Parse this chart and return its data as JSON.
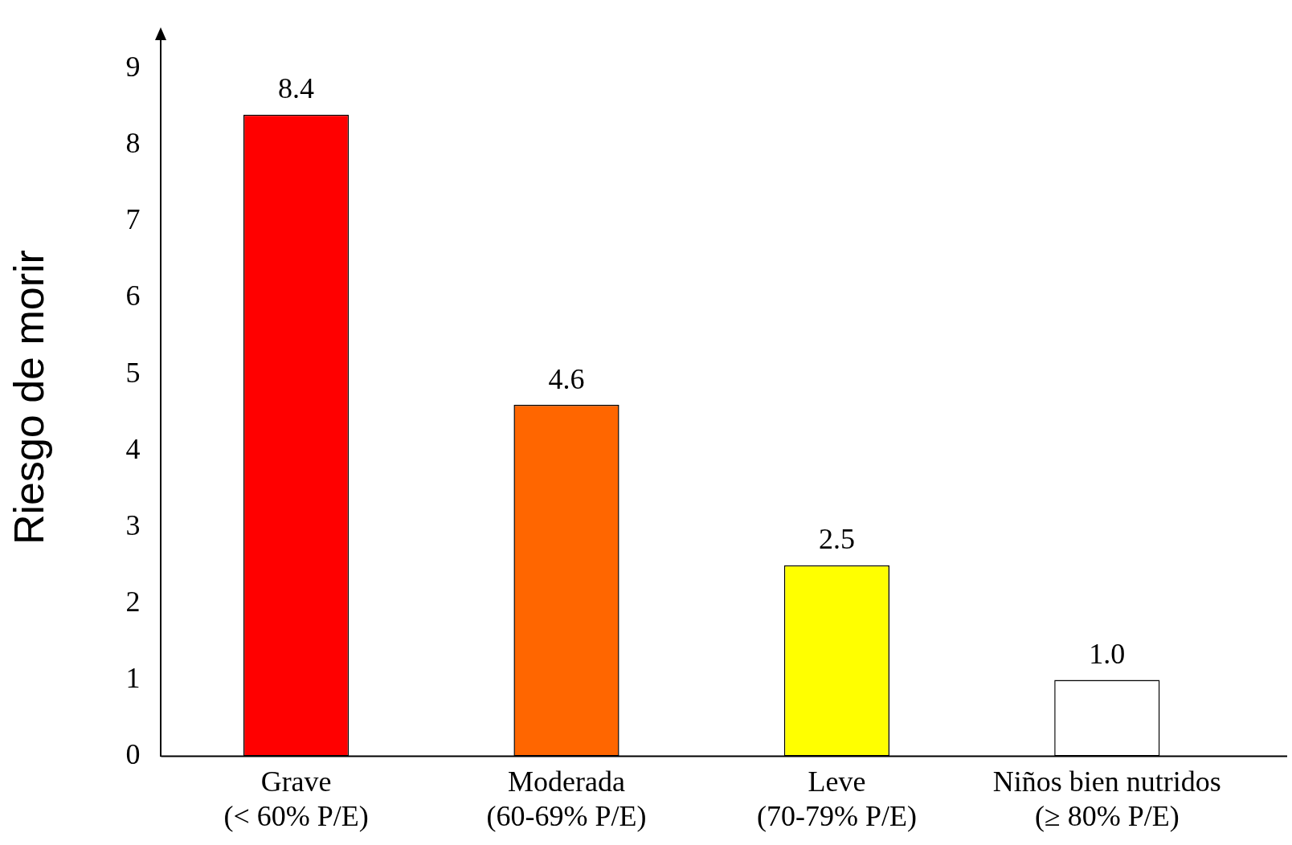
{
  "chart_data": {
    "type": "bar",
    "ylabel": "Riesgo de morir",
    "categories": [
      "Grave\n(< 60% P/E)",
      "Moderada\n(60-69% P/E)",
      "Leve\n(70-79% P/E)",
      "Niños bien nutridos\n(≥ 80% P/E)"
    ],
    "values": [
      8.4,
      4.6,
      2.5,
      1.0
    ],
    "colors": [
      "#ff0000",
      "#ff6600",
      "#ffff00",
      "#ffffff"
    ],
    "value_labels": [
      "8.4",
      "4.6",
      "2.5",
      "1.0"
    ],
    "ylim": [
      0,
      9.4
    ],
    "yticks": [
      0,
      1,
      2,
      3,
      4,
      5,
      6,
      7,
      8,
      9
    ]
  }
}
